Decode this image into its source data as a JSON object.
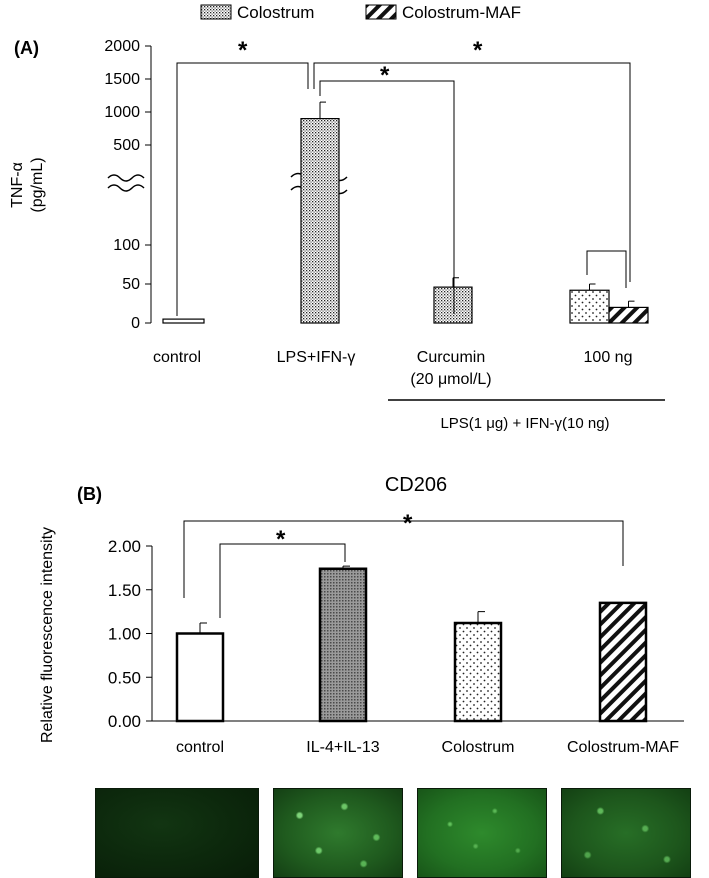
{
  "legend": {
    "items": [
      {
        "label": "Colostrum",
        "pattern": "dots"
      },
      {
        "label": "Colostrum-MAF",
        "pattern": "diag"
      }
    ]
  },
  "chart_data": [
    {
      "type": "bar",
      "panel_label": "(A)",
      "ylabel": "TNF-α\n(pg/mL)",
      "axis_break": true,
      "lower_yticks": [
        0,
        50,
        100
      ],
      "upper_yticks": [
        500,
        1000,
        1500,
        2000
      ],
      "ylim_lower": [
        0,
        150
      ],
      "ylim_upper": [
        300,
        2000
      ],
      "categories": [
        "control",
        "LPS+IFN-γ",
        "Curcumin\n(20 μmol/L)",
        "100 ng"
      ],
      "bars": [
        {
          "category": "control",
          "value": 5,
          "error": 0,
          "pattern": "white"
        },
        {
          "category": "LPS+IFN-γ",
          "value": 900,
          "error": 250,
          "pattern": "dense-dots"
        },
        {
          "category": "Curcumin\n(20 μmol/L)",
          "value": 46,
          "error": 12,
          "pattern": "dense-dots"
        },
        {
          "category": "100 ng",
          "series": "Colostrum",
          "value": 42,
          "error": 8,
          "pattern": "dots"
        },
        {
          "category": "100 ng",
          "series": "Colostrum-MAF",
          "value": 20,
          "error": 8,
          "pattern": "diag"
        }
      ],
      "annotations": {
        "group_label": "LPS(1 μg) + IFN-γ(10 ng)",
        "significance": "*"
      }
    },
    {
      "type": "bar",
      "panel_label": "(B)",
      "title": "CD206",
      "ylabel": "Relative fluorescence intensity",
      "ylim": [
        0,
        2.0
      ],
      "yticks": [
        "0.00",
        "0.50",
        "1.00",
        "1.50",
        "2.00"
      ],
      "categories": [
        "control",
        "IL-4+IL-13",
        "Colostrum",
        "Colostrum-MAF"
      ],
      "values": [
        1.0,
        1.74,
        1.12,
        1.35
      ],
      "errors": [
        0.12,
        0.03,
        0.13,
        0.0
      ],
      "patterns": [
        "white",
        "crosshatch",
        "dots",
        "diag"
      ],
      "annotations": {
        "significance": "*"
      }
    }
  ],
  "micrographs": [
    {
      "panel": "control",
      "brightness": 0.1
    },
    {
      "panel": "IL-4+IL-13",
      "brightness": 0.7
    },
    {
      "panel": "Colostrum",
      "brightness": 0.6
    },
    {
      "panel": "Colostrum-MAF",
      "brightness": 0.55
    }
  ]
}
